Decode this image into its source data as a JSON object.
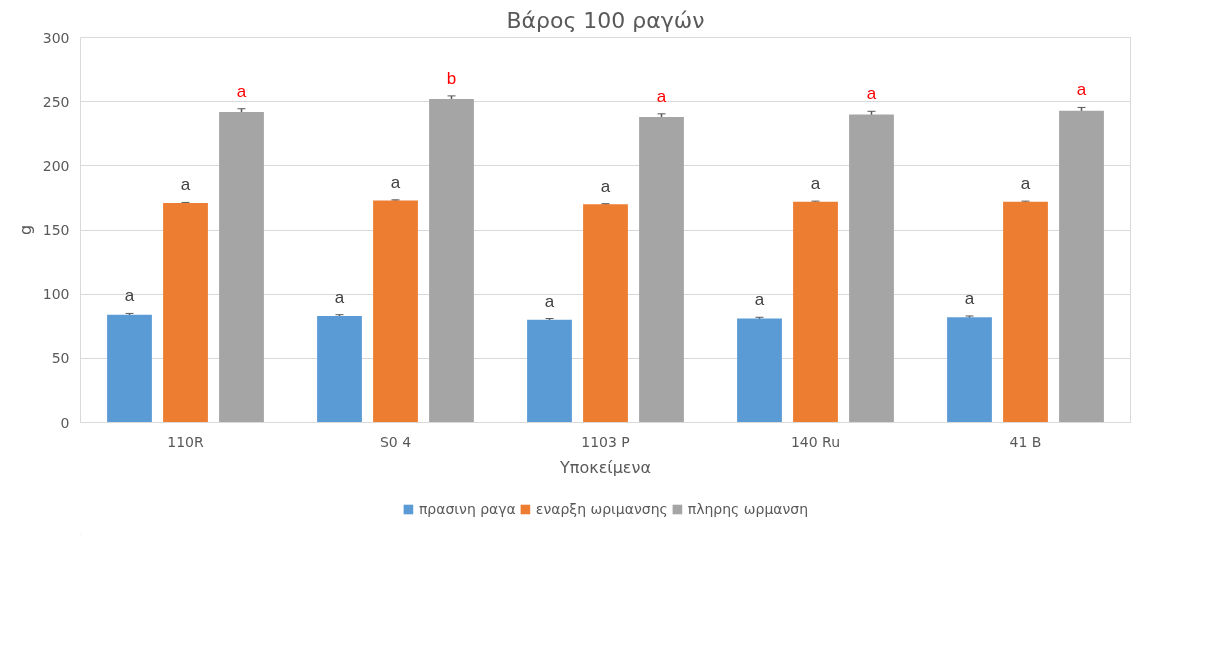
{
  "chart_data": {
    "type": "bar",
    "title": "Βάρος 100 ραγών",
    "xlabel": "Υποκείμενα",
    "ylabel": "g",
    "categories": [
      "110R",
      "S0 4",
      "1103 P",
      "140 Ru",
      "41 B"
    ],
    "series": [
      {
        "name": "πρασινη ραγα",
        "color": "#5b9bd5",
        "values": [
          84,
          83,
          80,
          81,
          82
        ],
        "errors": [
          1,
          1,
          1,
          1,
          1
        ],
        "value_labels": [
          "a",
          "a",
          "a",
          "a",
          "a"
        ]
      },
      {
        "name": "εναρξη ωριμανσης",
        "color": "#ed7d31",
        "values": [
          171,
          173,
          170,
          172,
          172
        ],
        "errors": [
          0.5,
          0.5,
          0.5,
          0.5,
          0.5
        ],
        "value_labels": [
          "a",
          "a",
          "a",
          "a",
          "a"
        ]
      },
      {
        "name": "πληρης ωρμανση",
        "color": "#a5a5a5",
        "values": [
          242,
          252,
          238,
          240,
          243
        ],
        "errors": [
          2.5,
          2.5,
          2.5,
          2.5,
          2.5
        ],
        "value_labels": [
          "a",
          "b",
          "a",
          "a",
          "a"
        ]
      }
    ],
    "ylim": [
      0,
      300
    ],
    "yticks": [
      0,
      50,
      100,
      150,
      200,
      250,
      300
    ],
    "grid": "y",
    "legend": "bottom"
  }
}
